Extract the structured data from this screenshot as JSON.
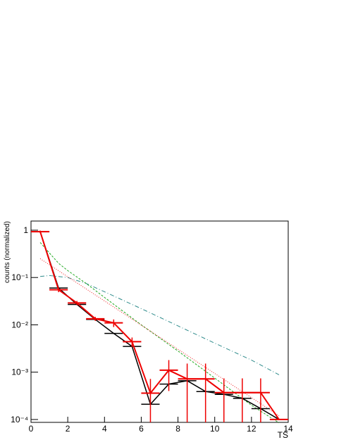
{
  "chart_data": {
    "type": "line",
    "x_label": "TS",
    "y_label": "counts (normalized)",
    "log_y": true,
    "xlim": [
      0,
      14
    ],
    "xticks": [
      0,
      2,
      4,
      6,
      8,
      10,
      12,
      14
    ],
    "ylim": [
      8.7e-05,
      1.56
    ],
    "yticks": [
      {
        "value": 0.0001,
        "label": "10⁻⁴"
      },
      {
        "value": 0.001,
        "label": "10⁻³"
      },
      {
        "value": 0.01,
        "label": "10⁻²"
      },
      {
        "value": 0.1,
        "label": "10⁻¹"
      },
      1
    ],
    "series": [
      {
        "color": "#2e8b8b",
        "style": "dashdot",
        "x": [
          0.5,
          1,
          2,
          3,
          4,
          6,
          8,
          10,
          12,
          13.5
        ],
        "values": [
          0.105,
          0.11,
          0.1,
          0.075,
          0.05,
          0.022,
          0.0095,
          0.0041,
          0.0018,
          0.00088
        ]
      },
      {
        "color": "#22aa22",
        "style": "dashed",
        "x": [
          0.5,
          1,
          1.5,
          2,
          3,
          4,
          6,
          8,
          10,
          12,
          13.5
        ],
        "values": [
          0.55,
          0.33,
          0.2,
          0.14,
          0.075,
          0.038,
          0.01,
          0.0028,
          0.00075,
          0.0002,
          8.5e-05
        ]
      },
      {
        "color": "#ee2222",
        "style": "dotted",
        "x": [
          0.5,
          13.5
        ],
        "values": [
          0.25,
          0.00012
        ]
      },
      {
        "color": "#000000",
        "style": "hist",
        "x": [
          0.5,
          1.5,
          2.5,
          3.5,
          4.5,
          5.5,
          6.5,
          7.5,
          8.5,
          9.5,
          10.5,
          11.5,
          12.5,
          13.5
        ],
        "values": [
          0.93,
          0.06,
          0.027,
          0.013,
          0.0066,
          0.0035,
          0.00021,
          0.00056,
          0.00066,
          0.00039,
          0.00034,
          0.00028,
          0.00017,
          0.0001
        ]
      },
      {
        "color": "#ee0000",
        "style": "hist",
        "x": [
          0.5,
          1.5,
          2.5,
          3.5,
          4.5,
          5.5,
          6.5,
          7.5,
          8.5,
          9.5,
          10.5,
          11.5,
          12.5,
          13.5
        ],
        "values": [
          0.93,
          0.055,
          0.029,
          0.0134,
          0.011,
          0.0044,
          0.00036,
          0.0011,
          0.00072,
          0.00072,
          0.00037,
          0.00037,
          0.00037,
          0.0001
        ],
        "errors": [
          0.05,
          0.006,
          0.003,
          0.0013,
          0.002,
          0.001,
          0.00036,
          0.0007,
          0.0008,
          0.0008,
          0.00037,
          0.00037,
          0.00037,
          0
        ]
      }
    ]
  }
}
